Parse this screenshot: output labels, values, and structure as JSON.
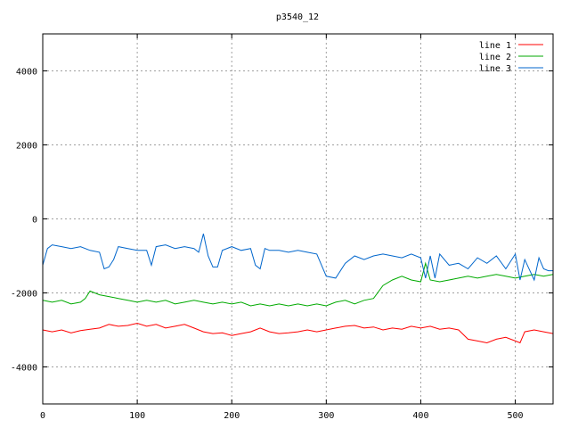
{
  "chart_data": {
    "type": "line",
    "title": "p3540_12",
    "xlabel": "",
    "ylabel": "",
    "xlim": [
      0,
      540
    ],
    "ylim": [
      -5000,
      5000
    ],
    "xticks": [
      0,
      100,
      200,
      300,
      400,
      500
    ],
    "yticks": [
      -4000,
      -2000,
      0,
      2000,
      4000
    ],
    "grid": true,
    "legend_position": "top-right",
    "series": [
      {
        "name": "line 1",
        "color": "#ff0000",
        "points": [
          [
            0,
            -3000
          ],
          [
            10,
            -3050
          ],
          [
            20,
            -3000
          ],
          [
            30,
            -3080
          ],
          [
            40,
            -3020
          ],
          [
            50,
            -2980
          ],
          [
            60,
            -2950
          ],
          [
            70,
            -2850
          ],
          [
            80,
            -2900
          ],
          [
            90,
            -2880
          ],
          [
            100,
            -2820
          ],
          [
            110,
            -2900
          ],
          [
            120,
            -2850
          ],
          [
            130,
            -2950
          ],
          [
            140,
            -2900
          ],
          [
            150,
            -2850
          ],
          [
            160,
            -2950
          ],
          [
            170,
            -3050
          ],
          [
            180,
            -3100
          ],
          [
            190,
            -3080
          ],
          [
            200,
            -3150
          ],
          [
            210,
            -3100
          ],
          [
            220,
            -3050
          ],
          [
            230,
            -2950
          ],
          [
            240,
            -3050
          ],
          [
            250,
            -3100
          ],
          [
            260,
            -3080
          ],
          [
            270,
            -3050
          ],
          [
            280,
            -3000
          ],
          [
            290,
            -3050
          ],
          [
            300,
            -3000
          ],
          [
            310,
            -2950
          ],
          [
            320,
            -2900
          ],
          [
            330,
            -2880
          ],
          [
            340,
            -2950
          ],
          [
            350,
            -2920
          ],
          [
            360,
            -3000
          ],
          [
            370,
            -2950
          ],
          [
            380,
            -2980
          ],
          [
            390,
            -2900
          ],
          [
            400,
            -2950
          ],
          [
            410,
            -2900
          ],
          [
            420,
            -2980
          ],
          [
            430,
            -2950
          ],
          [
            440,
            -3000
          ],
          [
            450,
            -3250
          ],
          [
            460,
            -3300
          ],
          [
            470,
            -3350
          ],
          [
            480,
            -3250
          ],
          [
            490,
            -3200
          ],
          [
            500,
            -3300
          ],
          [
            505,
            -3350
          ],
          [
            510,
            -3050
          ],
          [
            520,
            -3000
          ],
          [
            530,
            -3050
          ],
          [
            540,
            -3100
          ]
        ]
      },
      {
        "name": "line 2",
        "color": "#00aa00",
        "points": [
          [
            0,
            -2200
          ],
          [
            10,
            -2250
          ],
          [
            20,
            -2200
          ],
          [
            30,
            -2300
          ],
          [
            40,
            -2250
          ],
          [
            45,
            -2150
          ],
          [
            50,
            -1950
          ],
          [
            60,
            -2050
          ],
          [
            70,
            -2100
          ],
          [
            80,
            -2150
          ],
          [
            90,
            -2200
          ],
          [
            100,
            -2250
          ],
          [
            110,
            -2200
          ],
          [
            120,
            -2250
          ],
          [
            130,
            -2200
          ],
          [
            140,
            -2300
          ],
          [
            150,
            -2250
          ],
          [
            160,
            -2200
          ],
          [
            170,
            -2250
          ],
          [
            180,
            -2300
          ],
          [
            190,
            -2250
          ],
          [
            200,
            -2300
          ],
          [
            210,
            -2250
          ],
          [
            220,
            -2350
          ],
          [
            230,
            -2300
          ],
          [
            240,
            -2350
          ],
          [
            250,
            -2300
          ],
          [
            260,
            -2350
          ],
          [
            270,
            -2300
          ],
          [
            280,
            -2350
          ],
          [
            290,
            -2300
          ],
          [
            300,
            -2350
          ],
          [
            310,
            -2250
          ],
          [
            320,
            -2200
          ],
          [
            330,
            -2300
          ],
          [
            340,
            -2200
          ],
          [
            350,
            -2150
          ],
          [
            360,
            -1800
          ],
          [
            370,
            -1650
          ],
          [
            380,
            -1550
          ],
          [
            390,
            -1650
          ],
          [
            400,
            -1700
          ],
          [
            405,
            -1200
          ],
          [
            410,
            -1650
          ],
          [
            420,
            -1700
          ],
          [
            430,
            -1650
          ],
          [
            440,
            -1600
          ],
          [
            450,
            -1550
          ],
          [
            460,
            -1600
          ],
          [
            470,
            -1550
          ],
          [
            480,
            -1500
          ],
          [
            490,
            -1550
          ],
          [
            500,
            -1600
          ],
          [
            510,
            -1550
          ],
          [
            520,
            -1500
          ],
          [
            530,
            -1550
          ],
          [
            540,
            -1500
          ]
        ]
      },
      {
        "name": "line 3",
        "color": "#0066cc",
        "points": [
          [
            0,
            -1250
          ],
          [
            5,
            -800
          ],
          [
            10,
            -700
          ],
          [
            20,
            -750
          ],
          [
            30,
            -800
          ],
          [
            40,
            -750
          ],
          [
            50,
            -850
          ],
          [
            60,
            -900
          ],
          [
            65,
            -1350
          ],
          [
            70,
            -1300
          ],
          [
            75,
            -1100
          ],
          [
            80,
            -750
          ],
          [
            90,
            -800
          ],
          [
            100,
            -850
          ],
          [
            110,
            -850
          ],
          [
            115,
            -1250
          ],
          [
            120,
            -750
          ],
          [
            130,
            -700
          ],
          [
            140,
            -800
          ],
          [
            150,
            -750
          ],
          [
            160,
            -800
          ],
          [
            165,
            -900
          ],
          [
            170,
            -400
          ],
          [
            175,
            -1000
          ],
          [
            180,
            -1300
          ],
          [
            185,
            -1300
          ],
          [
            190,
            -850
          ],
          [
            200,
            -750
          ],
          [
            210,
            -850
          ],
          [
            220,
            -800
          ],
          [
            225,
            -1250
          ],
          [
            230,
            -1350
          ],
          [
            235,
            -800
          ],
          [
            240,
            -850
          ],
          [
            250,
            -850
          ],
          [
            260,
            -900
          ],
          [
            270,
            -850
          ],
          [
            280,
            -900
          ],
          [
            290,
            -950
          ],
          [
            300,
            -1550
          ],
          [
            310,
            -1600
          ],
          [
            320,
            -1200
          ],
          [
            330,
            -1000
          ],
          [
            340,
            -1100
          ],
          [
            350,
            -1000
          ],
          [
            360,
            -950
          ],
          [
            370,
            -1000
          ],
          [
            380,
            -1050
          ],
          [
            390,
            -950
          ],
          [
            400,
            -1050
          ],
          [
            405,
            -1600
          ],
          [
            410,
            -1000
          ],
          [
            415,
            -1600
          ],
          [
            420,
            -950
          ],
          [
            430,
            -1250
          ],
          [
            440,
            -1200
          ],
          [
            450,
            -1350
          ],
          [
            460,
            -1050
          ],
          [
            470,
            -1200
          ],
          [
            480,
            -1000
          ],
          [
            490,
            -1350
          ],
          [
            500,
            -950
          ],
          [
            505,
            -1650
          ],
          [
            510,
            -1100
          ],
          [
            520,
            -1650
          ],
          [
            525,
            -1050
          ],
          [
            530,
            -1350
          ],
          [
            535,
            -1400
          ],
          [
            540,
            -1400
          ]
        ]
      }
    ]
  }
}
